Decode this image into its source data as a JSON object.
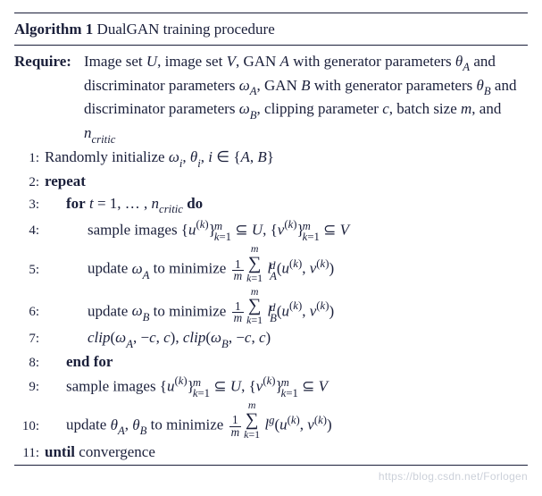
{
  "colors": {
    "text": "#1a1f3a",
    "rule": "#1a1f3a",
    "background": "#ffffff",
    "watermark": "rgba(140,150,170,0.45)"
  },
  "typography": {
    "family": "Times New Roman",
    "body_pt": 17,
    "lineno_pt": 15,
    "watermark_pt": 12
  },
  "algorithm": {
    "label": "Algorithm 1",
    "title": "DualGAN training procedure",
    "require_label": "Require:",
    "require_body_html": "Image set <i>U</i>, image set <i>V</i>, GAN <i>A</i> with generator parameters <i>θ<span class=\"sub\">A</span></i> and discriminator parameters <i>ω<span class=\"sub\">A</span></i>, GAN <i>B</i> with generator parameters <i>θ<span class=\"sub\">B</span></i> and discriminator parameters <i>ω<span class=\"sub\">B</span></i>, clipping parameter <i>c</i>, batch size <i>m</i>, and <i>n<span class=\"sub\">critic</span></i>",
    "lines": [
      {
        "n": "1:",
        "indent": 0,
        "html": "Randomly initialize <i>ω<span class=\"sub\">i</span></i>, <i>θ<span class=\"sub\">i</span></i>, <i>i</i> ∈ {<i>A</i>, <i>B</i>}"
      },
      {
        "n": "2:",
        "indent": 0,
        "html": "<b>repeat</b>"
      },
      {
        "n": "3:",
        "indent": 1,
        "html": "<b>for</b> <i>t</i> = 1, … , <i>n<span class=\"sub\">critic</span></i> <b>do</b>"
      },
      {
        "n": "4:",
        "indent": 2,
        "html": "sample images {<i>u</i><span class=\"sup\">(<i>k</i>)</span>}<span class=\"supsub\"><span class=\"t\"><i>m</i></span><span class=\"b\"><i>k</i>=1</span></span> ⊆ <i>U</i>, {<i>v</i><span class=\"sup\">(<i>k</i>)</span>}<span class=\"supsub\"><span class=\"t\"><i>m</i></span><span class=\"b\"><i>k</i>=1</span></span> ⊆ <i>V</i>"
      },
      {
        "n": "5:",
        "indent": 2,
        "html": "update <i>ω<span class=\"sub\">A</span></i> to minimize <span class=\"frac\"><span class=\"n\">1</span><span class=\"d\"><i>m</i></span></span><span class=\"sum\"><span class=\"lim\"><i>m</i></span><span class=\"sig\">∑</span><span class=\"lim\"><i>k</i>=1</span></span> <i>l</i><span class=\"supsub\"><span class=\"t\"><i>d</i></span><span class=\"b\"><i>A</i></span></span>(<i>u</i><span class=\"sup\">(<i>k</i>)</span>, <i>v</i><span class=\"sup\">(<i>k</i>)</span>)"
      },
      {
        "n": "6:",
        "indent": 2,
        "html": "update <i>ω<span class=\"sub\">B</span></i> to minimize <span class=\"frac\"><span class=\"n\">1</span><span class=\"d\"><i>m</i></span></span><span class=\"sum\"><span class=\"lim\"><i>m</i></span><span class=\"sig\">∑</span><span class=\"lim\"><i>k</i>=1</span></span> <i>l</i><span class=\"supsub\"><span class=\"t\"><i>d</i></span><span class=\"b\"><i>B</i></span></span>(<i>u</i><span class=\"sup\">(<i>k</i>)</span>, <i>v</i><span class=\"sup\">(<i>k</i>)</span>)"
      },
      {
        "n": "7:",
        "indent": 2,
        "html": "<i>clip</i>(<i>ω<span class=\"sub\">A</span></i>, −<i>c</i>, <i>c</i>), <i>clip</i>(<i>ω<span class=\"sub\">B</span></i>, −<i>c</i>, <i>c</i>)"
      },
      {
        "n": "8:",
        "indent": 1,
        "html": "<b>end for</b>"
      },
      {
        "n": "9:",
        "indent": 1,
        "html": "sample images {<i>u</i><span class=\"sup\">(<i>k</i>)</span>}<span class=\"supsub\"><span class=\"t\"><i>m</i></span><span class=\"b\"><i>k</i>=1</span></span> ⊆ <i>U</i>, {<i>v</i><span class=\"sup\">(<i>k</i>)</span>}<span class=\"supsub\"><span class=\"t\"><i>m</i></span><span class=\"b\"><i>k</i>=1</span></span> ⊆ <i>V</i>"
      },
      {
        "n": "10:",
        "indent": 1,
        "html": "update <i>θ<span class=\"sub\">A</span></i>, <i>θ<span class=\"sub\">B</span></i> to minimize <span class=\"frac\"><span class=\"n\">1</span><span class=\"d\"><i>m</i></span></span><span class=\"sum\"><span class=\"lim\"><i>m</i></span><span class=\"sig\">∑</span><span class=\"lim\"><i>k</i>=1</span></span> <i>l</i><span class=\"sup\"><i>g</i></span>(<i>u</i><span class=\"sup\">(<i>k</i>)</span>, <i>v</i><span class=\"sup\">(<i>k</i>)</span>)"
      },
      {
        "n": "11:",
        "indent": 0,
        "html": "<b>until</b> convergence"
      }
    ]
  },
  "watermark": "https://blog.csdn.net/Forlogen"
}
